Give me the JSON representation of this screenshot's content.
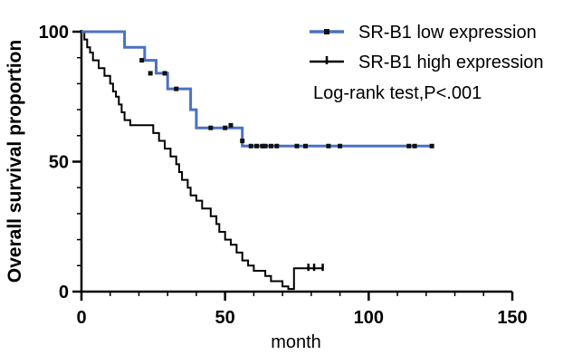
{
  "chart_data": {
    "type": "line",
    "subtype": "kaplan-meier-step",
    "ylabel": "Overall survival proportion",
    "xlabel": "month",
    "xlim": [
      0,
      150
    ],
    "ylim": [
      0,
      100
    ],
    "x_ticks": [
      0,
      50,
      100,
      150
    ],
    "y_ticks": [
      0,
      50,
      100
    ],
    "grid": false,
    "legend_position": "top-right",
    "annotation": "Log-rank test,P<.001",
    "series": [
      {
        "name": "SR-B1 low expression",
        "color": "#4a72c4",
        "steps": [
          [
            0,
            100
          ],
          [
            15,
            100
          ],
          [
            15,
            94
          ],
          [
            22,
            94
          ],
          [
            22,
            89
          ],
          [
            26,
            89
          ],
          [
            26,
            84
          ],
          [
            30,
            84
          ],
          [
            30,
            78
          ],
          [
            38,
            78
          ],
          [
            38,
            70
          ],
          [
            40,
            70
          ],
          [
            40,
            63
          ],
          [
            56,
            63
          ],
          [
            56,
            56
          ],
          [
            122,
            56
          ]
        ],
        "censored": [
          [
            21,
            89
          ],
          [
            24,
            84
          ],
          [
            29,
            84
          ],
          [
            33,
            78
          ],
          [
            45,
            63
          ],
          [
            50,
            63
          ],
          [
            52,
            64
          ],
          [
            56,
            58
          ],
          [
            59,
            56
          ],
          [
            61,
            56
          ],
          [
            63,
            56
          ],
          [
            64,
            56
          ],
          [
            66,
            56
          ],
          [
            68,
            56
          ],
          [
            75,
            56
          ],
          [
            78,
            56
          ],
          [
            86,
            56
          ],
          [
            90,
            56
          ],
          [
            114,
            56
          ],
          [
            116,
            56
          ],
          [
            122,
            56
          ]
        ]
      },
      {
        "name": "SR-B1 high expression",
        "color": "#000000",
        "steps": [
          [
            0,
            100
          ],
          [
            1,
            100
          ],
          [
            1,
            97
          ],
          [
            2,
            97
          ],
          [
            2,
            94
          ],
          [
            3,
            94
          ],
          [
            3,
            92
          ],
          [
            4,
            92
          ],
          [
            4,
            89
          ],
          [
            6,
            89
          ],
          [
            6,
            86
          ],
          [
            8,
            86
          ],
          [
            8,
            83
          ],
          [
            10,
            83
          ],
          [
            10,
            80
          ],
          [
            11,
            80
          ],
          [
            11,
            77
          ],
          [
            12,
            77
          ],
          [
            12,
            75
          ],
          [
            13,
            75
          ],
          [
            13,
            72
          ],
          [
            14,
            72
          ],
          [
            14,
            69
          ],
          [
            15,
            69
          ],
          [
            15,
            66
          ],
          [
            17,
            66
          ],
          [
            17,
            64
          ],
          [
            25,
            64
          ],
          [
            25,
            61
          ],
          [
            27,
            61
          ],
          [
            27,
            58
          ],
          [
            29,
            58
          ],
          [
            29,
            55
          ],
          [
            31,
            55
          ],
          [
            31,
            52
          ],
          [
            33,
            52
          ],
          [
            33,
            49
          ],
          [
            34,
            49
          ],
          [
            34,
            46
          ],
          [
            35,
            46
          ],
          [
            35,
            43
          ],
          [
            37,
            43
          ],
          [
            37,
            40
          ],
          [
            38,
            40
          ],
          [
            38,
            37
          ],
          [
            40,
            37
          ],
          [
            40,
            35
          ],
          [
            42,
            35
          ],
          [
            42,
            32
          ],
          [
            45,
            32
          ],
          [
            45,
            29
          ],
          [
            47,
            29
          ],
          [
            47,
            26
          ],
          [
            48,
            26
          ],
          [
            48,
            23
          ],
          [
            50,
            23
          ],
          [
            50,
            20
          ],
          [
            52,
            20
          ],
          [
            52,
            18
          ],
          [
            54,
            18
          ],
          [
            54,
            15
          ],
          [
            56,
            15
          ],
          [
            56,
            12
          ],
          [
            58,
            12
          ],
          [
            58,
            10
          ],
          [
            60,
            10
          ],
          [
            60,
            8
          ],
          [
            64,
            8
          ],
          [
            64,
            6
          ],
          [
            66,
            6
          ],
          [
            66,
            4
          ],
          [
            70,
            4
          ],
          [
            70,
            2
          ],
          [
            72,
            2
          ],
          [
            72,
            1
          ],
          [
            74,
            1
          ],
          [
            74,
            9
          ],
          [
            84,
            9
          ]
        ],
        "censored": [
          [
            79,
            9
          ],
          [
            81,
            9
          ],
          [
            84,
            9
          ]
        ]
      }
    ]
  }
}
